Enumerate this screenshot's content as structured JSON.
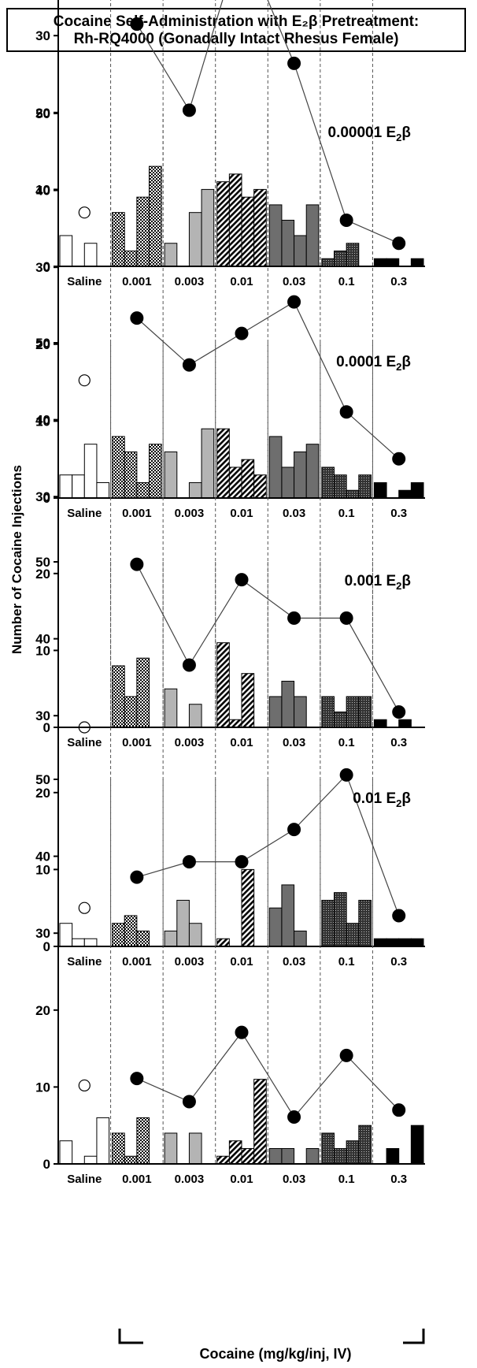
{
  "figure": {
    "title_line1": "Cocaine Self-Administration with E₂β Pretreatment:",
    "title_line2": "Rh-RQ4000 (Gonadally Intact  Rhesus Female)",
    "ylabel": "Number of Cocaine Injections",
    "xlabel": "Cocaine (mg/kg/inj, IV)"
  },
  "chart_data": [
    {
      "type": "bar",
      "title": "Saline",
      "categories": [
        "Saline",
        "0.001",
        "0.003",
        "0.01",
        "0.03",
        "0.1",
        "0.3"
      ],
      "ylim": [
        0,
        50
      ],
      "yticks": [
        0,
        10,
        20,
        30,
        40,
        50
      ],
      "session_bars": [
        [
          4,
          0,
          3,
          0
        ],
        [
          7,
          2,
          9,
          13
        ],
        [
          3,
          0,
          7,
          10
        ],
        [
          11,
          12,
          9,
          10
        ],
        [
          8,
          6,
          4,
          8
        ],
        [
          1,
          2,
          3,
          0
        ],
        [
          1,
          1,
          0,
          1
        ]
      ],
      "mean_points": [
        7,
        31.5,
        20.3,
        42.8,
        26.4,
        6,
        3
      ]
    },
    {
      "type": "bar",
      "title": "0.00001 E₂β",
      "categories": [
        "Saline",
        "0.001",
        "0.003",
        "0.01",
        "0.03",
        "0.1",
        "0.3"
      ],
      "ylim": [
        0,
        50
      ],
      "yticks": [
        0,
        10,
        20,
        30,
        40,
        50
      ],
      "session_bars": [
        [
          3,
          3,
          7,
          2
        ],
        [
          8,
          6,
          2,
          7
        ],
        [
          6,
          0,
          2,
          9
        ],
        [
          9,
          4,
          5,
          3
        ],
        [
          8,
          4,
          6,
          7
        ],
        [
          4,
          3,
          1,
          3
        ],
        [
          2,
          0,
          1,
          2
        ]
      ],
      "mean_points": [
        15.3,
        23.4,
        17.3,
        21.4,
        25.5,
        11.2,
        5.1
      ]
    },
    {
      "type": "bar",
      "title": "0.0001 E₂β",
      "categories": [
        "Saline",
        "0.001",
        "0.003",
        "0.01",
        "0.03",
        "0.1",
        "0.3"
      ],
      "ylim": [
        0,
        50
      ],
      "yticks": [
        0,
        10,
        20,
        30,
        40,
        50
      ],
      "session_bars": [
        [
          0,
          0,
          0,
          0
        ],
        [
          8,
          4,
          9,
          0
        ],
        [
          5,
          0,
          3,
          0
        ],
        [
          11,
          1,
          7,
          0
        ],
        [
          4,
          6,
          4,
          0
        ],
        [
          4,
          2,
          4,
          4
        ],
        [
          1,
          0,
          1,
          0
        ]
      ],
      "mean_points": [
        0,
        21.2,
        8.1,
        19.2,
        14.2,
        14.2,
        2
      ]
    },
    {
      "type": "bar",
      "title": "0.001 E₂β",
      "categories": [
        "Saline",
        "0.001",
        "0.003",
        "0.01",
        "0.03",
        "0.1",
        "0.3"
      ],
      "ylim": [
        0,
        50
      ],
      "yticks": [
        0,
        10,
        20,
        30,
        40,
        50
      ],
      "session_bars": [
        [
          3,
          1,
          1,
          0
        ],
        [
          3,
          4,
          2,
          0
        ],
        [
          2,
          6,
          3,
          0
        ],
        [
          1,
          0,
          10,
          0
        ],
        [
          5,
          8,
          2,
          0
        ],
        [
          6,
          7,
          3,
          6
        ],
        [
          1,
          1,
          1,
          1
        ]
      ],
      "mean_points": [
        5,
        9,
        11,
        11,
        15.2,
        22.3,
        4
      ]
    },
    {
      "type": "bar",
      "title": "0.01 E₂β",
      "categories": [
        "Saline",
        "0.001",
        "0.003",
        "0.01",
        "0.03",
        "0.1",
        "0.3"
      ],
      "ylim": [
        0,
        50
      ],
      "yticks": [
        0,
        10,
        20,
        30,
        40,
        50
      ],
      "session_bars": [
        [
          3,
          0,
          1,
          6
        ],
        [
          4,
          1,
          6,
          0
        ],
        [
          4,
          0,
          4,
          0
        ],
        [
          1,
          3,
          2,
          11
        ],
        [
          2,
          2,
          0,
          2
        ],
        [
          4,
          2,
          3,
          5
        ],
        [
          0,
          2,
          0,
          5
        ]
      ],
      "mean_points": [
        10.2,
        11.1,
        8.1,
        17.1,
        6.1,
        14.1,
        7
      ]
    }
  ]
}
